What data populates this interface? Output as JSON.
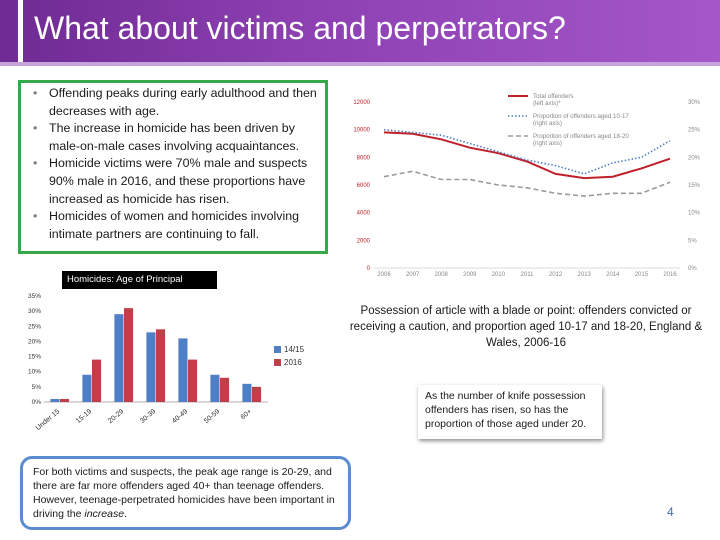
{
  "title": "What about victims and perpetrators?",
  "bullets": [
    "Offending peaks during early adulthood and then decreases with age.",
    "The increase in homicide has been driven by male-on-male cases involving acquaintances.",
    "Homicide victims were 70% male and suspects 90% male in 2016, and these proportions have increased as homicide has risen.",
    "Homicides of women and homicides involving intimate partners  are continuing to fall."
  ],
  "colors": {
    "title_bg": "#8b3fb0",
    "bullet_border": "#35a84a",
    "victims_border": "#5b8bd1",
    "total_line": "#c0202a",
    "aged_10_17_line": "#4f7fc4",
    "aged_18_20_line": "#9a9a9a",
    "bar_1415": "#4f7fc4",
    "bar_2016": "#c0404a",
    "axis_text": "#c0202a"
  },
  "chart_data": [
    {
      "type": "line",
      "title": "",
      "x": [
        2006,
        2007,
        2008,
        2009,
        2010,
        2011,
        2012,
        2013,
        2014,
        2015,
        2016
      ],
      "x_tick_labels": [
        "2006",
        "2007",
        "2008",
        "2009",
        "2010",
        "2011",
        "2012",
        "2013",
        "2014",
        "2015",
        "2016"
      ],
      "y_left_ticks": [
        "0",
        "2000",
        "4000",
        "6000",
        "8000",
        "10000",
        "12000"
      ],
      "y_right_ticks": [
        "0%",
        "5%",
        "10%",
        "15%",
        "20%",
        "25%",
        "30%"
      ],
      "ylim_left": [
        0,
        12000
      ],
      "ylim_right": [
        0,
        30
      ],
      "series": [
        {
          "name": "Total offenders (left axis)*",
          "axis": "left",
          "style": "solid",
          "values": [
            9800,
            9700,
            9300,
            8700,
            8300,
            7700,
            6800,
            6500,
            6600,
            7200,
            7900
          ]
        },
        {
          "name": "Proportion of offenders aged 10-17 (right axis)",
          "axis": "right",
          "style": "dotted",
          "values": [
            25,
            24.5,
            24,
            22.5,
            21,
            19.5,
            18.5,
            17,
            19,
            20,
            23
          ]
        },
        {
          "name": "Proportion of offenders aged 18-20 (right axis)",
          "axis": "right",
          "style": "dashed",
          "values": [
            16.5,
            17.5,
            16,
            16,
            15,
            14.5,
            13.5,
            13,
            13.5,
            13.5,
            15.5
          ]
        }
      ],
      "caption": "Possession of article with a blade or point: offenders convicted or receiving a caution, and proportion aged 10-17 and 18-20, England & Wales, 2006-16"
    },
    {
      "type": "bar",
      "title": "Homicides: Age of Principal Suspect",
      "categories": [
        "Under 15",
        "15-19",
        "20-29",
        "30-39",
        "40-49",
        "50-59",
        "60+"
      ],
      "series": [
        {
          "name": "14/15",
          "values": [
            1,
            9,
            29,
            23,
            21,
            9,
            6
          ]
        },
        {
          "name": "2016",
          "values": [
            1,
            14,
            31,
            24,
            14,
            8,
            5
          ]
        }
      ],
      "y_ticks": [
        "0%",
        "5%",
        "10%",
        "15%",
        "20%",
        "25%",
        "30%",
        "35%"
      ],
      "ylim": [
        0,
        35
      ]
    }
  ],
  "knife_note": "As the number of knife possession offenders has risen, so has the proportion of those aged under 20.",
  "victims_note_main": "For both victims and suspects, the peak age range is 20-29, and there are far more offenders aged 40+ than teenage offenders. However, teenage-perpetrated homicides have been important in driving the ",
  "victims_note_em": "increase",
  "victims_note_end": ".",
  "page_number": "4"
}
